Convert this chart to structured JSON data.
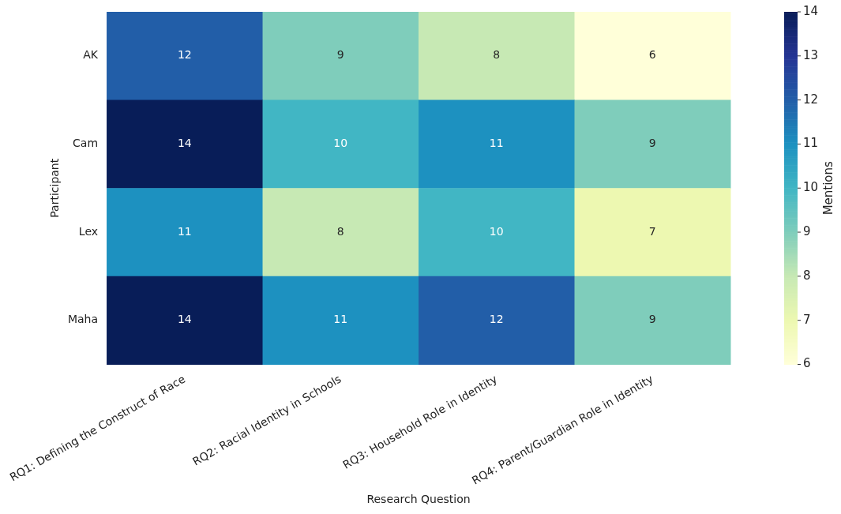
{
  "chart_data": {
    "type": "heatmap",
    "xlabel": "Research Question",
    "ylabel": "Participant",
    "clabel": "Mentions",
    "categories": [
      "RQ1: Defining the Construct of Race",
      "RQ2: Racial Identity in Schools",
      "RQ3: Household Role in Identity",
      "RQ4: Parent/Guardian Role in Identity"
    ],
    "y_categories": [
      "AK",
      "Cam",
      "Lex",
      "Maha"
    ],
    "cells": [
      [
        12,
        9,
        8,
        6
      ],
      [
        14,
        10,
        11,
        9
      ],
      [
        11,
        8,
        10,
        7
      ],
      [
        14,
        11,
        12,
        9
      ]
    ],
    "data_labels": true,
    "clim": [
      6,
      14
    ],
    "cticks": [
      6,
      7,
      8,
      9,
      10,
      11,
      12,
      13,
      14
    ]
  }
}
